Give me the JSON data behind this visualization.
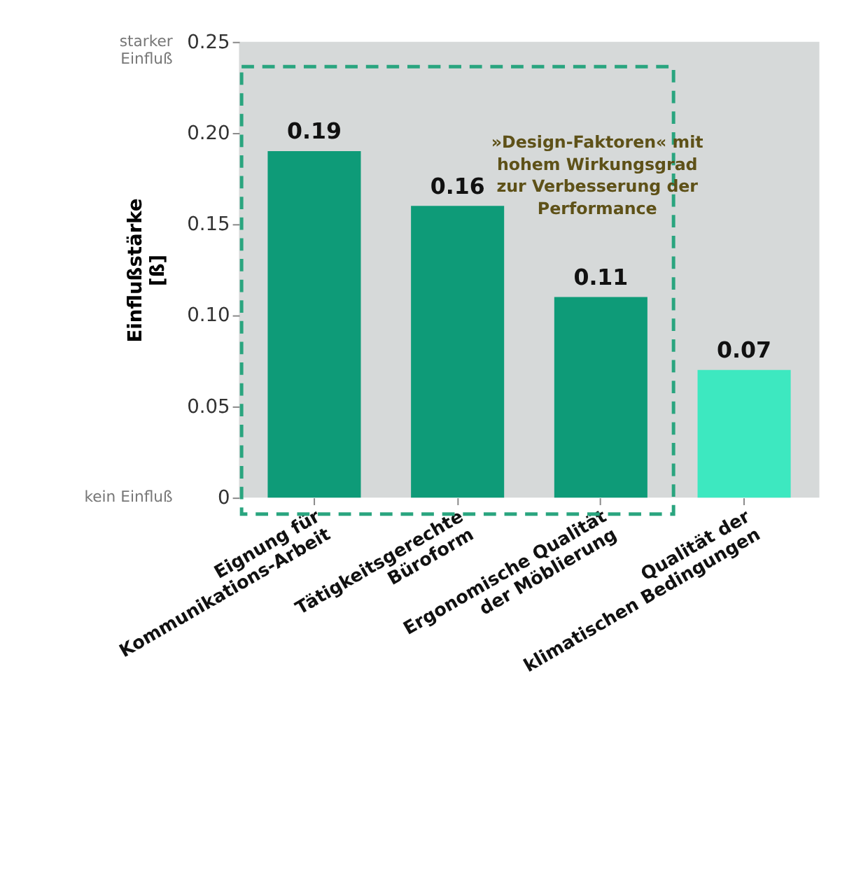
{
  "chart_data": {
    "type": "bar",
    "categories": [
      "Eignung für\nKommunikations-Arbeit",
      "Tätigkeitsgerechte\nBüroform",
      "Ergonomische Qualität\nder Möblierung",
      "Qualität der\nklimatischen Bedingungen"
    ],
    "values": [
      0.19,
      0.16,
      0.11,
      0.07
    ],
    "colors": [
      "#0e9b78",
      "#0e9b78",
      "#0e9b78",
      "#3de8c0"
    ],
    "data_labels": true,
    "ylabel": "Einflußstärke\n[ß]",
    "ylim": [
      0,
      0.25
    ],
    "yticks": [
      0,
      {
        "value": 0.05,
        "label": "0.05"
      },
      {
        "value": 0.1,
        "label": "0.10"
      },
      {
        "value": 0.15,
        "label": "0.15"
      },
      {
        "value": 0.2,
        "label": "0.20"
      },
      {
        "value": 0.25,
        "label": "0.25"
      }
    ],
    "grid": false,
    "annotations": [
      "starker\nEinfluß",
      "kein Einfluß",
      "»Design-Faktoren« mit\nhohem Wirkungsgrad\nzur Verbesserung der\nPerformance"
    ]
  }
}
